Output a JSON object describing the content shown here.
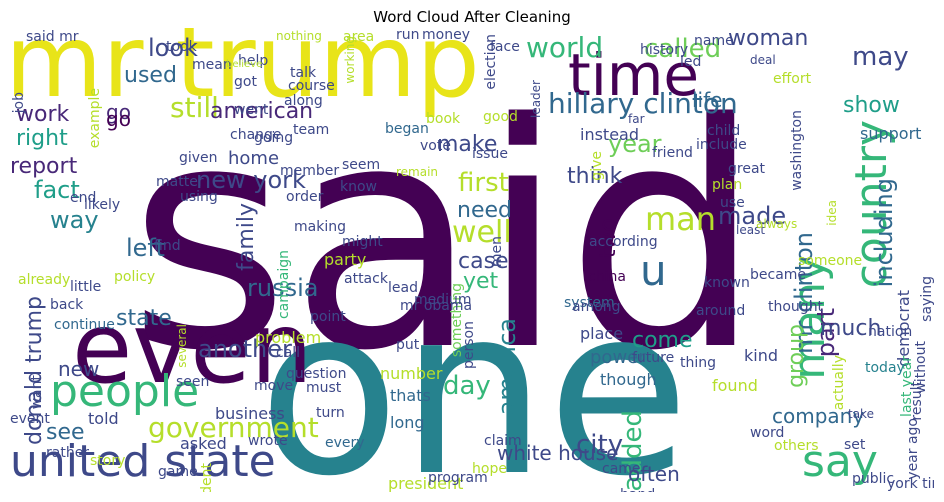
{
  "title": "Word Cloud After Cleaning",
  "palette": {
    "dark_purple": "#440154",
    "purple": "#482878",
    "blue_purple": "#3e4989",
    "blue": "#31688e",
    "teal_blue": "#26828e",
    "teal": "#1f9e89",
    "green": "#35b779",
    "light_green": "#6ece58",
    "yellow_green": "#b5de2b",
    "yellow": "#fde725"
  },
  "words": [
    {
      "text": "said",
      "color": "#440154"
    },
    {
      "text": "one",
      "color": "#26828e"
    },
    {
      "text": "mr trump",
      "color": "#e8e419"
    },
    {
      "text": "even",
      "color": "#440154"
    },
    {
      "text": "time",
      "color": "#440154"
    },
    {
      "text": "united state",
      "color": "#3e4989"
    },
    {
      "text": "people",
      "color": "#35b779"
    },
    {
      "text": "country",
      "color": "#35b779"
    },
    {
      "text": "many",
      "color": "#35b779"
    },
    {
      "text": "say",
      "color": "#35b779"
    },
    {
      "text": "u",
      "color": "#31688e"
    },
    {
      "text": "hillary clinton",
      "color": "#31688e"
    },
    {
      "text": "world",
      "color": "#35b779"
    },
    {
      "text": "called",
      "color": "#6ece58"
    },
    {
      "text": "woman",
      "color": "#3e4989"
    },
    {
      "text": "may",
      "color": "#3e4989"
    },
    {
      "text": "look",
      "color": "#3e4989"
    },
    {
      "text": "still",
      "color": "#b5de2b"
    },
    {
      "text": "life",
      "color": "#31688e"
    },
    {
      "text": "used",
      "color": "#31688e"
    },
    {
      "text": "go",
      "color": "#482878"
    },
    {
      "text": "american",
      "color": "#482878"
    },
    {
      "text": "show",
      "color": "#1f9e89"
    },
    {
      "text": "work",
      "color": "#482878"
    },
    {
      "text": "right",
      "color": "#1f9e89"
    },
    {
      "text": "report",
      "color": "#482878"
    },
    {
      "text": "fact",
      "color": "#1f9e89"
    },
    {
      "text": "way",
      "color": "#26828e"
    },
    {
      "text": "new york",
      "color": "#3e4989"
    },
    {
      "text": "home",
      "color": "#3e4989"
    },
    {
      "text": "family",
      "color": "#3e4989"
    },
    {
      "text": "left",
      "color": "#31688e"
    },
    {
      "text": "first",
      "color": "#b5de2b"
    },
    {
      "text": "think",
      "color": "#3e4989"
    },
    {
      "text": "make",
      "color": "#3e4989"
    },
    {
      "text": "year",
      "color": "#6ece58"
    },
    {
      "text": "need",
      "color": "#31688e"
    },
    {
      "text": "well",
      "color": "#b5de2b"
    },
    {
      "text": "man",
      "color": "#b5de2b"
    },
    {
      "text": "made",
      "color": "#3e4989"
    },
    {
      "text": "including",
      "color": "#31688e"
    },
    {
      "text": "mr clinton",
      "color": "#31688e"
    },
    {
      "text": "part",
      "color": "#482878"
    },
    {
      "text": "two",
      "color": "#440154"
    },
    {
      "text": "case",
      "color": "#3e4989"
    },
    {
      "text": "yet",
      "color": "#35b779"
    },
    {
      "text": "russia",
      "color": "#31688e"
    },
    {
      "text": "state",
      "color": "#31688e"
    },
    {
      "text": "another",
      "color": "#3e4989"
    },
    {
      "text": "donald trump",
      "color": "#3e4989"
    },
    {
      "text": "new",
      "color": "#3e4989"
    },
    {
      "text": "government",
      "color": "#b5de2b"
    },
    {
      "text": "day",
      "color": "#35b779"
    },
    {
      "text": "america",
      "color": "#26828e"
    },
    {
      "text": "come",
      "color": "#1f9e89"
    },
    {
      "text": "much",
      "color": "#3e4989"
    },
    {
      "text": "group",
      "color": "#6ece58"
    },
    {
      "text": "company",
      "color": "#31688e"
    },
    {
      "text": "city",
      "color": "#3e4989"
    },
    {
      "text": "added",
      "color": "#35b779"
    },
    {
      "text": "white house",
      "color": "#3e4989"
    },
    {
      "text": "often",
      "color": "#3e4989"
    },
    {
      "text": "see",
      "color": "#31688e"
    },
    {
      "text": "instead",
      "color": "#3e4989"
    },
    {
      "text": "child",
      "color": "#3e4989"
    },
    {
      "text": "according",
      "color": "#3e4989"
    },
    {
      "text": "china",
      "color": "#440154"
    },
    {
      "text": "known",
      "color": "#3e4989"
    },
    {
      "text": "democrat",
      "color": "#3e4989"
    },
    {
      "text": "saying",
      "color": "#3e4989"
    },
    {
      "text": "last year",
      "color": "#35b779"
    },
    {
      "text": "support",
      "color": "#31688e"
    },
    {
      "text": "nation",
      "color": "#3e4989"
    },
    {
      "text": "today",
      "color": "#26828e"
    },
    {
      "text": "result",
      "color": "#3e4989"
    },
    {
      "text": "without",
      "color": "#3e4989"
    },
    {
      "text": "business",
      "color": "#3e4989"
    },
    {
      "text": "president",
      "color": "#b5de2b"
    },
    {
      "text": "problem",
      "color": "#b5de2b"
    },
    {
      "text": "place",
      "color": "#3e4989"
    },
    {
      "text": "power",
      "color": "#31688e"
    },
    {
      "text": "kind",
      "color": "#3e4989"
    },
    {
      "text": "word",
      "color": "#3e4989"
    },
    {
      "text": "found",
      "color": "#b5de2b"
    },
    {
      "text": "though",
      "color": "#31688e"
    },
    {
      "text": "long",
      "color": "#31688e"
    },
    {
      "text": "number",
      "color": "#b5de2b"
    },
    {
      "text": "thats",
      "color": "#31688e"
    },
    {
      "text": "issue",
      "color": "#3e4989"
    },
    {
      "text": "something",
      "color": "#6ece58"
    },
    {
      "text": "system",
      "color": "#31688e"
    },
    {
      "text": "became",
      "color": "#3e4989"
    },
    {
      "text": "plan",
      "color": "#b5de2b"
    },
    {
      "text": "use",
      "color": "#3e4989"
    },
    {
      "text": "great",
      "color": "#3e4989"
    },
    {
      "text": "course",
      "color": "#3e4989"
    },
    {
      "text": "area",
      "color": "#b5de2b"
    },
    {
      "text": "go",
      "color": "#440154"
    },
    {
      "text": "going",
      "color": "#3e4989"
    },
    {
      "text": "team",
      "color": "#3e4989"
    },
    {
      "text": "went",
      "color": "#3e4989"
    },
    {
      "text": "change",
      "color": "#3e4989"
    },
    {
      "text": "began",
      "color": "#31688e"
    },
    {
      "text": "good",
      "color": "#b5de2b"
    },
    {
      "text": "given",
      "color": "#3e4989"
    },
    {
      "text": "end",
      "color": "#3e4989"
    },
    {
      "text": "seem",
      "color": "#3e4989"
    },
    {
      "text": "know",
      "color": "#3e4989"
    },
    {
      "text": "might",
      "color": "#3e4989"
    },
    {
      "text": "party",
      "color": "#b5de2b"
    },
    {
      "text": "campaign",
      "color": "#35b779"
    },
    {
      "text": "back",
      "color": "#3e4989"
    },
    {
      "text": "continue",
      "color": "#31688e"
    },
    {
      "text": "point",
      "color": "#3e4989"
    },
    {
      "text": "call",
      "color": "#3e4989"
    },
    {
      "text": "question",
      "color": "#3e4989"
    },
    {
      "text": "must",
      "color": "#3e4989"
    },
    {
      "text": "told",
      "color": "#3e4989"
    },
    {
      "text": "story",
      "color": "#b5de2b"
    },
    {
      "text": "asked",
      "color": "#3e4989"
    },
    {
      "text": "wrote",
      "color": "#3e4989"
    },
    {
      "text": "every",
      "color": "#31688e"
    },
    {
      "text": "already",
      "color": "#b5de2b"
    },
    {
      "text": "little",
      "color": "#3e4989"
    },
    {
      "text": "mean",
      "color": "#3e4989"
    },
    {
      "text": "help",
      "color": "#3e4989"
    },
    {
      "text": "took",
      "color": "#3e4989"
    },
    {
      "text": "said mr",
      "color": "#3e4989"
    },
    {
      "text": "nothing",
      "color": "#b5de2b"
    },
    {
      "text": "run",
      "color": "#3e4989"
    },
    {
      "text": "money",
      "color": "#3e4989"
    },
    {
      "text": "face",
      "color": "#3e4989"
    },
    {
      "text": "name",
      "color": "#3e4989"
    },
    {
      "text": "led",
      "color": "#3e4989"
    },
    {
      "text": "deal",
      "color": "#3e4989"
    },
    {
      "text": "effort",
      "color": "#b5de2b"
    },
    {
      "text": "washington",
      "color": "#3e4989"
    },
    {
      "text": "include",
      "color": "#3e4989"
    },
    {
      "text": "history",
      "color": "#3e4989"
    },
    {
      "text": "far",
      "color": "#3e4989"
    },
    {
      "text": "friend",
      "color": "#3e4989"
    },
    {
      "text": "talk",
      "color": "#3e4989"
    },
    {
      "text": "along",
      "color": "#3e4989"
    },
    {
      "text": "got",
      "color": "#3e4989"
    },
    {
      "text": "believe",
      "color": "#b5de2b"
    },
    {
      "text": "book",
      "color": "#b5de2b"
    },
    {
      "text": "vote",
      "color": "#3e4989"
    },
    {
      "text": "member",
      "color": "#3e4989"
    },
    {
      "text": "order",
      "color": "#3e4989"
    },
    {
      "text": "matter",
      "color": "#3e4989"
    },
    {
      "text": "using",
      "color": "#3e4989"
    },
    {
      "text": "making",
      "color": "#3e4989"
    },
    {
      "text": "likely",
      "color": "#3e4989"
    },
    {
      "text": "find",
      "color": "#3e4989"
    },
    {
      "text": "policy",
      "color": "#b5de2b"
    },
    {
      "text": "attack",
      "color": "#3e4989"
    },
    {
      "text": "lead",
      "color": "#3e4989"
    },
    {
      "text": "medium",
      "color": "#3e4989"
    },
    {
      "text": "mr obama",
      "color": "#3e4989"
    },
    {
      "text": "among",
      "color": "#3e4989"
    },
    {
      "text": "around",
      "color": "#3e4989"
    },
    {
      "text": "thought",
      "color": "#3e4989"
    },
    {
      "text": "future",
      "color": "#3e4989"
    },
    {
      "text": "thing",
      "color": "#3e4989"
    },
    {
      "text": "put",
      "color": "#3e4989"
    },
    {
      "text": "claim",
      "color": "#3e4989"
    },
    {
      "text": "hope",
      "color": "#b5de2b"
    },
    {
      "text": "came",
      "color": "#3e4989"
    },
    {
      "text": "hand",
      "color": "#3e4989"
    },
    {
      "text": "others",
      "color": "#b5de2b"
    },
    {
      "text": "set",
      "color": "#3e4989"
    },
    {
      "text": "take",
      "color": "#3e4989"
    },
    {
      "text": "year ago",
      "color": "#3e4989"
    },
    {
      "text": "york time",
      "color": "#3e4989"
    },
    {
      "text": "public",
      "color": "#3e4989"
    },
    {
      "text": "program",
      "color": "#3e4989"
    },
    {
      "text": "student",
      "color": "#b5de2b"
    },
    {
      "text": "game",
      "color": "#3e4989"
    },
    {
      "text": "rather",
      "color": "#3e4989"
    },
    {
      "text": "event",
      "color": "#3e4989"
    },
    {
      "text": "seen",
      "color": "#3e4989"
    },
    {
      "text": "move",
      "color": "#3e4989"
    },
    {
      "text": "turn",
      "color": "#3e4989"
    },
    {
      "text": "want",
      "color": "#3e4989"
    },
    {
      "text": "person",
      "color": "#3e4989"
    },
    {
      "text": "job",
      "color": "#3e4989"
    },
    {
      "text": "example",
      "color": "#b5de2b"
    },
    {
      "text": "election",
      "color": "#3e4989"
    },
    {
      "text": "leader",
      "color": "#3e4989"
    },
    {
      "text": "working",
      "color": "#b5de2b"
    },
    {
      "text": "give",
      "color": "#b5de2b"
    },
    {
      "text": "men",
      "color": "#3e4989"
    },
    {
      "text": "idea",
      "color": "#b5de2b"
    },
    {
      "text": "remain",
      "color": "#b5de2b"
    },
    {
      "text": "several",
      "color": "#b5de2b"
    },
    {
      "text": "actually",
      "color": "#b5de2b"
    },
    {
      "text": "least",
      "color": "#3e4989"
    },
    {
      "text": "always",
      "color": "#b5de2b"
    },
    {
      "text": "someone",
      "color": "#b5de2b"
    },
    {
      "text": "head",
      "color": "#3e4989"
    }
  ]
}
